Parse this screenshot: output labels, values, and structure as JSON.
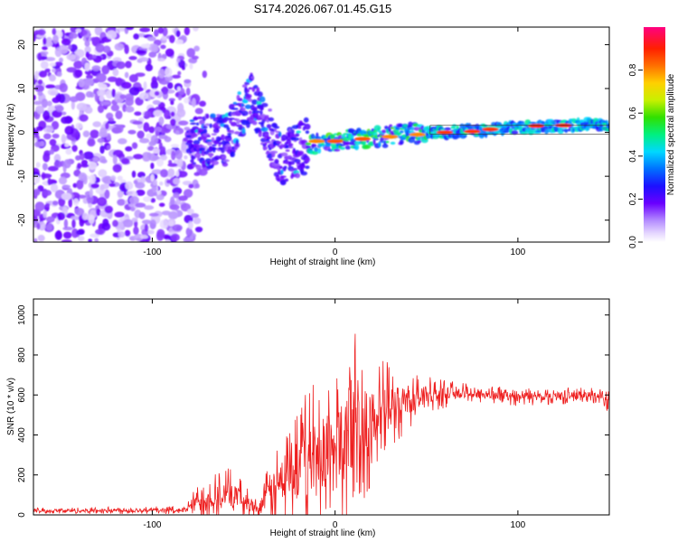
{
  "title": "S174.2026.067.01.45.G15",
  "chart_data": [
    {
      "type": "heatmap",
      "xlabel": "Height of straight line (km)",
      "ylabel": "Frequency (Hz)",
      "xlim": [
        -165,
        150
      ],
      "ylim": [
        -25,
        24
      ],
      "xticks": [
        -100,
        0,
        100
      ],
      "yticks": [
        -20,
        -10,
        0,
        10,
        20
      ],
      "colorbar": {
        "label": "Normalized spectral amplitude",
        "range": [
          0,
          1
        ],
        "ticks": [
          "0.0",
          "0.2",
          "0.4",
          "0.6",
          "0.8"
        ]
      },
      "ridge": [
        {
          "x": -60,
          "y": -2
        },
        {
          "x": -45,
          "y": 8
        },
        {
          "x": -30,
          "y": -6
        },
        {
          "x": -15,
          "y": -3
        },
        {
          "x": 0,
          "y": -2
        },
        {
          "x": 25,
          "y": -1
        },
        {
          "x": 50,
          "y": 0
        },
        {
          "x": 80,
          "y": 0.5
        },
        {
          "x": 100,
          "y": 1
        },
        {
          "x": 150,
          "y": 2
        }
      ]
    },
    {
      "type": "line",
      "xlabel": "Height of straight line (km)",
      "ylabel": "SNR (10 * v/v)",
      "xlim": [
        -165,
        150
      ],
      "ylim": [
        0,
        1080
      ],
      "xticks": [
        -100,
        0,
        100
      ],
      "yticks": [
        0,
        200,
        400,
        600,
        800,
        1000
      ],
      "series": [
        {
          "name": "SNR",
          "color": "#ee2020",
          "envelope": [
            {
              "x": -165,
              "base": 20,
              "amp": 15
            },
            {
              "x": -82,
              "base": 25,
              "amp": 20
            },
            {
              "x": -75,
              "base": 70,
              "amp": 90
            },
            {
              "x": -60,
              "base": 110,
              "amp": 140
            },
            {
              "x": -50,
              "base": 80,
              "amp": 90
            },
            {
              "x": -42,
              "base": 30,
              "amp": 40
            },
            {
              "x": -38,
              "base": 90,
              "amp": 120
            },
            {
              "x": -25,
              "base": 200,
              "amp": 280
            },
            {
              "x": -15,
              "base": 270,
              "amp": 380
            },
            {
              "x": 0,
              "base": 330,
              "amp": 420
            },
            {
              "x": 15,
              "base": 420,
              "amp": 380
            },
            {
              "x": 25,
              "base": 500,
              "amp": 300
            },
            {
              "x": 35,
              "base": 560,
              "amp": 180
            },
            {
              "x": 50,
              "base": 600,
              "amp": 90
            },
            {
              "x": 70,
              "base": 610,
              "amp": 50
            },
            {
              "x": 100,
              "base": 590,
              "amp": 45
            },
            {
              "x": 145,
              "base": 600,
              "amp": 40
            },
            {
              "x": 150,
              "base": 560,
              "amp": 150
            }
          ]
        }
      ]
    }
  ]
}
